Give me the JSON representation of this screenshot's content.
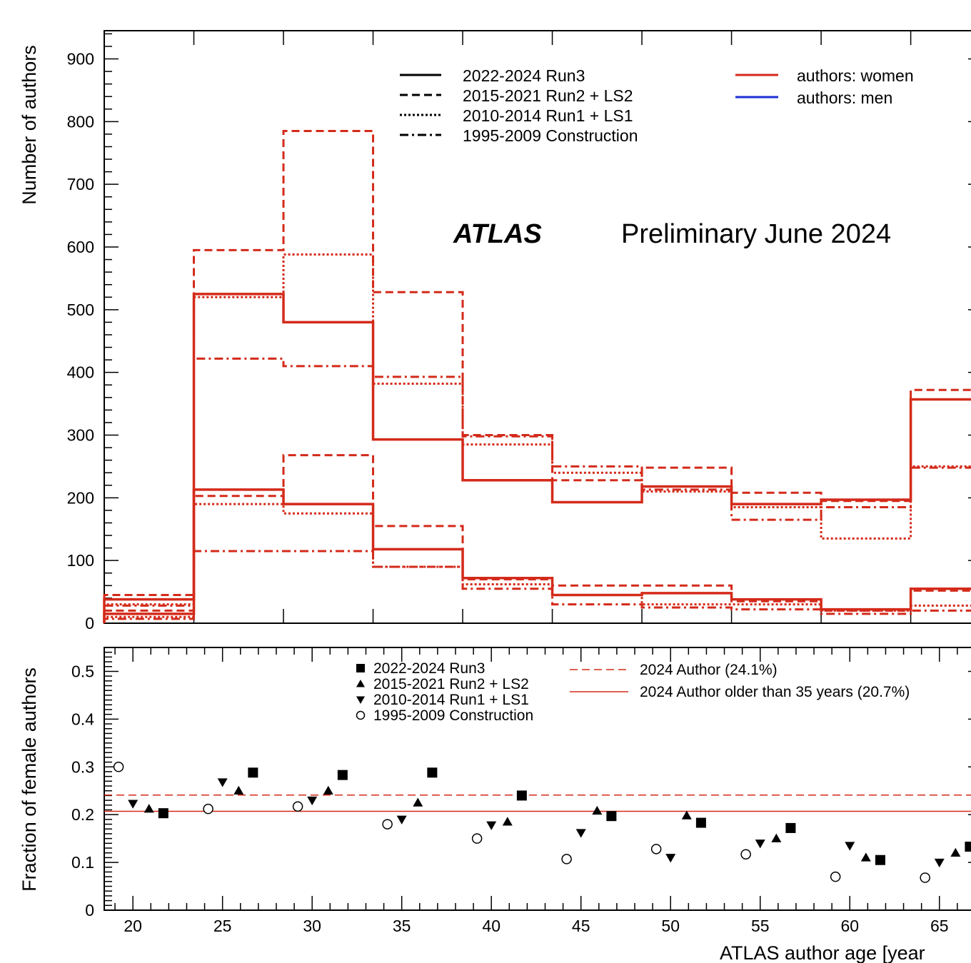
{
  "chart_data": [
    {
      "type": "line",
      "title": "",
      "annotations": {
        "experiment": "ATLAS",
        "status": "Preliminary June 2024"
      },
      "xlabel": "",
      "ylabel": "Number of authors",
      "xlim": [
        18.4,
        67.4
      ],
      "ylim": [
        0,
        945
      ],
      "yticks": [
        0,
        100,
        200,
        300,
        400,
        500,
        600,
        700,
        800,
        900
      ],
      "bin_edges": [
        18.4,
        23.4,
        28.4,
        33.4,
        38.4,
        43.4,
        48.4,
        53.4,
        58.4,
        63.4,
        67.4
      ],
      "legend_periods": [
        {
          "label": "2022-2024 Run3",
          "style": "solid"
        },
        {
          "label": "2015-2021 Run2 + LS2",
          "style": "dashed"
        },
        {
          "label": "2010-2014 Run1 + LS1",
          "style": "dotted"
        },
        {
          "label": "1995-2009 Construction",
          "style": "dashdot"
        }
      ],
      "legend_groups": [
        {
          "label": "authors: women",
          "color": "#d42a1a"
        },
        {
          "label": "authors: men",
          "color": "#1a2fd4"
        }
      ],
      "series": [
        {
          "group": "men",
          "period": "2022-2024 Run3",
          "values": [
            38,
            525,
            480,
            293,
            228,
            193,
            218,
            190,
            197,
            357
          ]
        },
        {
          "group": "men",
          "period": "2015-2021 Run2 + LS2",
          "values": [
            45,
            595,
            785,
            528,
            300,
            228,
            248,
            208,
            195,
            372
          ]
        },
        {
          "group": "men",
          "period": "2010-2014 Run1 + LS1",
          "values": [
            30,
            520,
            588,
            382,
            285,
            240,
            210,
            185,
            135,
            250
          ]
        },
        {
          "group": "men",
          "period": "1995-2009 Construction",
          "values": [
            28,
            422,
            410,
            393,
            298,
            250,
            213,
            165,
            185,
            248
          ]
        },
        {
          "group": "women",
          "period": "2022-2024 Run3",
          "values": [
            15,
            213,
            190,
            118,
            72,
            45,
            48,
            38,
            22,
            55
          ]
        },
        {
          "group": "women",
          "period": "2015-2021 Run2 + LS2",
          "values": [
            20,
            203,
            268,
            155,
            70,
            60,
            60,
            35,
            20,
            52
          ]
        },
        {
          "group": "women",
          "period": "2010-2014 Run1 + LS1",
          "values": [
            10,
            190,
            175,
            90,
            62,
            45,
            30,
            30,
            20,
            28
          ]
        },
        {
          "group": "women",
          "period": "1995-2009 Construction",
          "values": [
            7,
            115,
            115,
            90,
            55,
            30,
            25,
            22,
            15,
            20
          ]
        }
      ]
    },
    {
      "type": "scatter",
      "title": "",
      "xlabel": "ATLAS author age [year",
      "ylabel": "Fraction of female authors",
      "xlim": [
        18.4,
        67.4
      ],
      "ylim": [
        0,
        0.55
      ],
      "xticks": [
        20,
        25,
        30,
        35,
        40,
        45,
        50,
        55,
        60,
        65
      ],
      "yticks": [
        0,
        0.1,
        0.2,
        0.3,
        0.4,
        0.5
      ],
      "ytick_labels": [
        "0",
        "0.1",
        "0.2",
        "0.3",
        "0.4",
        "0.5"
      ],
      "reference_lines": [
        {
          "label": "2024 Author (24.1%)",
          "y": 0.241,
          "style": "dashed",
          "color": "#d42a1a"
        },
        {
          "label": "2024 Author older than 35 years (20.7%)",
          "y": 0.207,
          "style": "solid",
          "color": "#d42a1a"
        }
      ],
      "series": [
        {
          "name": "2022-2024 Run3",
          "marker": "square",
          "x": [
            21.7,
            26.7,
            31.7,
            36.7,
            41.7,
            46.7,
            51.7,
            56.7,
            61.7,
            66.7
          ],
          "y": [
            0.203,
            0.288,
            0.283,
            0.288,
            0.24,
            0.197,
            0.183,
            0.172,
            0.105,
            0.133
          ]
        },
        {
          "name": "2015-2021 Run2 + LS2",
          "marker": "triangle-up",
          "x": [
            20.9,
            25.9,
            30.9,
            35.9,
            40.9,
            45.9,
            50.9,
            55.9,
            60.9,
            65.9
          ],
          "y": [
            0.212,
            0.25,
            0.25,
            0.225,
            0.185,
            0.208,
            0.198,
            0.15,
            0.11,
            0.12
          ]
        },
        {
          "name": "2010-2014 Run1 + LS1",
          "marker": "triangle-down",
          "x": [
            20.0,
            25.0,
            30.0,
            35.0,
            40.0,
            45.0,
            50.0,
            55.0,
            60.0,
            65.0
          ],
          "y": [
            0.223,
            0.268,
            0.23,
            0.19,
            0.178,
            0.162,
            0.11,
            0.14,
            0.135,
            0.1
          ]
        },
        {
          "name": "1995-2009 Construction",
          "marker": "circle-open",
          "x": [
            19.2,
            24.2,
            29.2,
            34.2,
            39.2,
            44.2,
            49.2,
            54.2,
            59.2,
            64.2
          ],
          "y": [
            0.3,
            0.212,
            0.217,
            0.18,
            0.15,
            0.107,
            0.128,
            0.117,
            0.07,
            0.068
          ]
        }
      ]
    }
  ]
}
